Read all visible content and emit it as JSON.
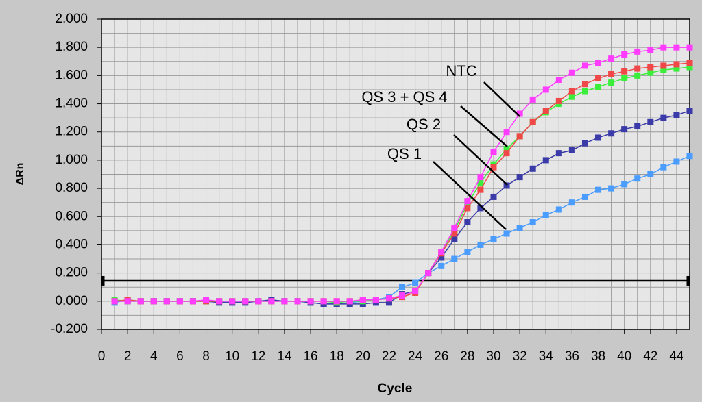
{
  "chart_data": {
    "type": "line",
    "x_label": "Cycle",
    "y_label": "ΔRn",
    "x": [
      1,
      2,
      3,
      4,
      5,
      6,
      7,
      8,
      9,
      10,
      11,
      12,
      13,
      14,
      15,
      16,
      17,
      18,
      19,
      20,
      21,
      22,
      23,
      24,
      25,
      26,
      27,
      28,
      29,
      30,
      31,
      32,
      33,
      34,
      35,
      36,
      37,
      38,
      39,
      40,
      41,
      42,
      43,
      44,
      45
    ],
    "series": [
      {
        "color": "#4a9cff",
        "values": [
          -0.01,
          0.01,
          0.0,
          0.0,
          0.0,
          0.0,
          0.0,
          0.0,
          0.0,
          -0.01,
          0.0,
          0.0,
          0.0,
          0.0,
          0.0,
          -0.01,
          -0.02,
          -0.02,
          -0.01,
          0.0,
          0.01,
          0.03,
          0.1,
          0.13,
          0.2,
          0.25,
          0.3,
          0.35,
          0.4,
          0.44,
          0.48,
          0.52,
          0.56,
          0.61,
          0.65,
          0.7,
          0.74,
          0.79,
          0.8,
          0.83,
          0.87,
          0.9,
          0.95,
          0.99,
          1.03
        ]
      },
      {
        "color": "#3a3aa8",
        "values": [
          0.0,
          0.0,
          0.0,
          0.0,
          0.0,
          0.0,
          0.0,
          0.0,
          -0.01,
          -0.01,
          -0.01,
          0.0,
          0.01,
          0.0,
          0.0,
          -0.01,
          -0.02,
          -0.02,
          -0.02,
          -0.02,
          -0.01,
          -0.01,
          0.05,
          0.07,
          0.2,
          0.31,
          0.44,
          0.56,
          0.66,
          0.74,
          0.82,
          0.88,
          0.94,
          1.0,
          1.05,
          1.07,
          1.12,
          1.16,
          1.19,
          1.22,
          1.24,
          1.27,
          1.3,
          1.32,
          1.35
        ]
      },
      {
        "color": "#3cee3c",
        "values": [
          0.01,
          0.0,
          0.0,
          0.0,
          0.0,
          0.0,
          0.0,
          0.0,
          0.0,
          0.0,
          0.0,
          0.0,
          0.0,
          0.0,
          0.0,
          0.0,
          0.0,
          -0.01,
          0.0,
          0.0,
          0.01,
          0.02,
          0.04,
          0.07,
          0.2,
          0.35,
          0.5,
          0.69,
          0.84,
          0.97,
          1.08,
          1.17,
          1.27,
          1.34,
          1.4,
          1.45,
          1.49,
          1.52,
          1.55,
          1.58,
          1.6,
          1.62,
          1.64,
          1.65,
          1.66
        ]
      },
      {
        "color": "#f04848",
        "values": [
          0.0,
          0.01,
          0.0,
          0.0,
          0.0,
          0.0,
          0.0,
          0.0,
          0.0,
          0.0,
          0.0,
          0.0,
          0.0,
          0.0,
          0.0,
          0.0,
          0.0,
          0.0,
          0.0,
          0.01,
          0.01,
          0.02,
          0.03,
          0.06,
          0.2,
          0.34,
          0.48,
          0.66,
          0.79,
          0.95,
          1.05,
          1.17,
          1.27,
          1.35,
          1.42,
          1.49,
          1.54,
          1.58,
          1.61,
          1.63,
          1.65,
          1.66,
          1.67,
          1.68,
          1.69
        ]
      },
      {
        "color": "#ff3cff",
        "values": [
          0.0,
          0.0,
          0.0,
          0.0,
          0.0,
          0.0,
          0.0,
          0.01,
          0.0,
          0.0,
          0.0,
          0.0,
          0.0,
          0.0,
          0.0,
          0.0,
          0.0,
          0.0,
          0.0,
          0.01,
          0.01,
          0.02,
          0.04,
          0.07,
          0.2,
          0.35,
          0.52,
          0.71,
          0.88,
          1.06,
          1.2,
          1.33,
          1.43,
          1.5,
          1.57,
          1.62,
          1.67,
          1.69,
          1.72,
          1.75,
          1.77,
          1.78,
          1.8,
          1.8,
          1.8
        ]
      }
    ],
    "annotations": [
      "NTC",
      "QS 3 + QS 4",
      "QS 2",
      "QS 1"
    ],
    "threshold": 0.145,
    "xlim": [
      0,
      45
    ],
    "xticks": [
      0,
      2,
      4,
      6,
      8,
      10,
      12,
      14,
      16,
      18,
      20,
      22,
      24,
      26,
      28,
      30,
      32,
      34,
      36,
      38,
      40,
      42,
      44
    ],
    "ylim": [
      -0.2,
      2
    ],
    "yticks": [
      {
        "value": -0.2,
        "label": "-0.200"
      },
      {
        "value": 0,
        "label": "0.000"
      },
      {
        "value": 0.2,
        "label": "0.200"
      },
      {
        "value": 0.4,
        "label": "0.400"
      },
      {
        "value": 0.6,
        "label": "0.600"
      },
      {
        "value": 0.8,
        "label": "0.800"
      },
      {
        "value": 1,
        "label": "1.000"
      },
      {
        "value": 1.2,
        "label": "1.200"
      },
      {
        "value": 1.4,
        "label": "1.400"
      },
      {
        "value": 1.6,
        "label": "1.600"
      },
      {
        "value": 1.8,
        "label": "1.800"
      },
      {
        "value": 2,
        "label": "2.000"
      }
    ],
    "grid": true
  }
}
